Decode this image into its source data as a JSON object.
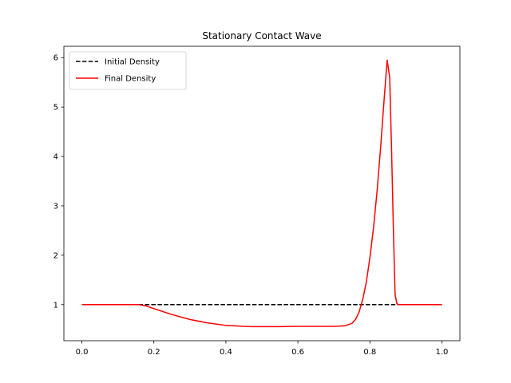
{
  "chart_data": {
    "type": "line",
    "title": "Stationary Contact Wave",
    "xlabel": "",
    "ylabel": "",
    "xlim": [
      -0.05,
      1.05
    ],
    "ylim": [
      0.27,
      6.23
    ],
    "x_ticks": [
      0.0,
      0.2,
      0.4,
      0.6,
      0.8,
      1.0
    ],
    "x_tick_labels": [
      "0.0",
      "0.2",
      "0.4",
      "0.6",
      "0.8",
      "1.0"
    ],
    "y_ticks": [
      1,
      2,
      3,
      4,
      5,
      6
    ],
    "y_tick_labels": [
      "1",
      "2",
      "3",
      "4",
      "5",
      "6"
    ],
    "grid": false,
    "legend_position": "top-left",
    "series": [
      {
        "name": "Initial Density",
        "color": "#000000",
        "style": "dashed",
        "x": [
          0.0,
          1.0
        ],
        "y": [
          1.0,
          1.0
        ]
      },
      {
        "name": "Final Density",
        "color": "#ff0000",
        "style": "solid",
        "x": [
          0.0,
          0.1,
          0.16,
          0.18,
          0.2,
          0.25,
          0.3,
          0.35,
          0.4,
          0.45,
          0.47,
          0.5,
          0.55,
          0.6,
          0.65,
          0.7,
          0.73,
          0.75,
          0.76,
          0.77,
          0.78,
          0.79,
          0.8,
          0.81,
          0.82,
          0.83,
          0.84,
          0.848,
          0.855,
          0.86,
          0.865,
          0.87,
          0.875,
          0.88,
          0.9,
          1.0
        ],
        "y": [
          1.0,
          1.0,
          1.0,
          0.97,
          0.92,
          0.8,
          0.7,
          0.63,
          0.58,
          0.56,
          0.555,
          0.555,
          0.555,
          0.56,
          0.56,
          0.56,
          0.57,
          0.62,
          0.7,
          0.85,
          1.1,
          1.45,
          1.95,
          2.55,
          3.3,
          4.2,
          5.2,
          5.95,
          5.6,
          4.2,
          2.6,
          1.2,
          1.02,
          1.0,
          1.0,
          1.0
        ]
      }
    ]
  }
}
